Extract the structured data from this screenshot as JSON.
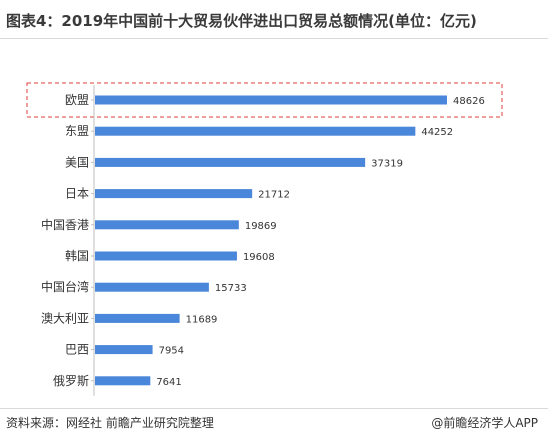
{
  "header": {
    "title": "图表4：2019年中国前十大贸易伙伴进出口贸易总额情况(单位：亿元)"
  },
  "footer": {
    "source": "资料来源：网经社 前瞻产业研究院整理",
    "brand": "@前瞻经济学人APP"
  },
  "colors": {
    "bar": "#4a86d9",
    "highlight_border": "#e0403a"
  },
  "chart_data": {
    "type": "bar",
    "orientation": "horizontal",
    "categories": [
      "欧盟",
      "东盟",
      "美国",
      "日本",
      "中国香港",
      "韩国",
      "中国台湾",
      "澳大利亚",
      "巴西",
      "俄罗斯"
    ],
    "values": [
      48626,
      44252,
      37319,
      21712,
      19869,
      19608,
      15733,
      11689,
      7954,
      7641
    ],
    "title": "图表4：2019年中国前十大贸易伙伴进出口贸易总额情况(单位：亿元)",
    "xlim": [
      0,
      48626
    ],
    "grid": false,
    "legend": "none",
    "highlight": "欧盟"
  }
}
